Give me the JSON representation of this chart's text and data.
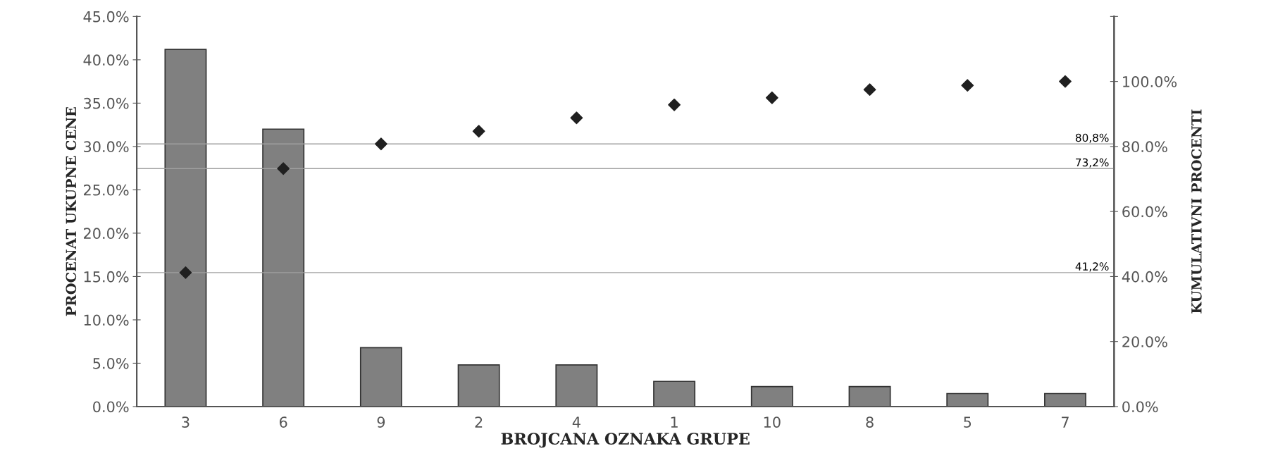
{
  "chart_data": {
    "type": "bar",
    "xlabel": "BROJCANA OZNAKA GRUPE",
    "ylabel": "PROCENAT UKUPNE CENE",
    "y2label": "KUMULATIVNI PROCENTI",
    "categories": [
      "3",
      "6",
      "9",
      "2",
      "4",
      "1",
      "10",
      "8",
      "5",
      "7"
    ],
    "series": [
      {
        "color": "#808080",
        "values": [
          41.2,
          32.0,
          6.8,
          4.8,
          4.8,
          2.9,
          2.3,
          2.3,
          1.5,
          1.5
        ]
      },
      {
        "type": "scatter",
        "axis": "y2",
        "color": "#202020",
        "marker": "diamond",
        "values": [
          41.2,
          73.2,
          80.8,
          84.7,
          88.8,
          92.8,
          95.0,
          97.5,
          98.8,
          100.0
        ]
      }
    ],
    "ylim": [
      0,
      45
    ],
    "yticks": [
      {
        "value": 0,
        "label": "0.0%"
      },
      {
        "value": 5,
        "label": "5.0%"
      },
      {
        "value": 10,
        "label": "10.0%"
      },
      {
        "value": 15,
        "label": "15.0%"
      },
      {
        "value": 20,
        "label": "20.0%"
      },
      {
        "value": 25,
        "label": "25.0%"
      },
      {
        "value": 30,
        "label": "30.0%"
      },
      {
        "value": 35,
        "label": "35.0%"
      },
      {
        "value": 40,
        "label": "40.0%"
      },
      {
        "value": 45,
        "label": "45.0%"
      }
    ],
    "y2lim": [
      0,
      120
    ],
    "y2ticks": [
      {
        "value": 0,
        "label": "0.0%"
      },
      {
        "value": 20,
        "label": "20.0%"
      },
      {
        "value": 40,
        "label": "40.0%"
      },
      {
        "value": 60,
        "label": "60.0%"
      },
      {
        "value": 80,
        "label": "80.0%"
      },
      {
        "value": 100,
        "label": "100.0%"
      },
      {
        "value": 120,
        "label": null
      }
    ],
    "ref_lines": [
      {
        "axis": "y2",
        "value": 41.2,
        "label": "41,2%",
        "color": "#a0a0a0"
      },
      {
        "axis": "y2",
        "value": 73.2,
        "label": "73,2%",
        "color": "#a0a0a0"
      },
      {
        "axis": "y2",
        "value": 80.8,
        "label": "80,8%",
        "color": "#a0a0a0"
      }
    ],
    "grid": false,
    "legend": false
  }
}
